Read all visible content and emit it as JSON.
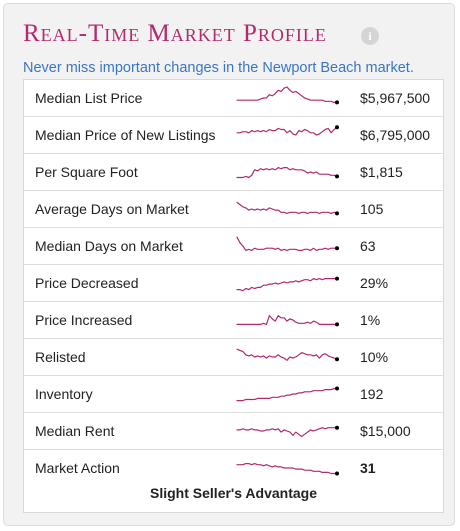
{
  "header": {
    "title": "Real-Time Market Profile",
    "info_icon": "info-icon",
    "subtitle": "Never miss important changes in the Newport Beach market."
  },
  "colors": {
    "accent": "#b22a6c",
    "link": "#3a76c4"
  },
  "rows": [
    {
      "label": "Median List Price",
      "value": "$5,967,500",
      "trend": [
        8,
        8,
        8,
        8,
        8,
        8,
        8,
        8,
        9,
        10,
        10,
        13,
        12,
        14,
        17,
        16,
        19,
        20,
        17,
        15,
        16,
        14,
        12,
        10,
        9,
        8,
        8,
        8,
        8,
        8,
        7,
        7,
        7,
        6,
        6
      ]
    },
    {
      "label": "Median Price of New Listings",
      "value": "$6,795,000",
      "trend": [
        12,
        12,
        13,
        13,
        12,
        14,
        13,
        14,
        13,
        14,
        13,
        15,
        14,
        14,
        16,
        15,
        15,
        12,
        14,
        11,
        10,
        14,
        13,
        15,
        14,
        12,
        12,
        10,
        11,
        13,
        15,
        16,
        12,
        15,
        17
      ]
    },
    {
      "label": "Per Square Foot",
      "value": "$1,815",
      "trend": [
        5,
        5,
        5,
        6,
        5,
        7,
        12,
        11,
        13,
        12,
        13,
        12,
        13,
        12,
        14,
        13,
        14,
        14,
        12,
        13,
        12,
        12,
        12,
        11,
        9,
        10,
        9,
        10,
        8,
        8,
        8,
        8,
        7,
        7,
        6
      ]
    },
    {
      "label": "Average Days on Market",
      "value": "105",
      "trend": [
        16,
        14,
        12,
        11,
        9,
        10,
        9,
        10,
        9,
        10,
        9,
        11,
        10,
        9,
        9,
        7,
        7,
        6,
        7,
        7,
        7,
        6,
        7,
        7,
        6,
        7,
        7,
        7,
        6,
        7,
        7,
        7,
        6,
        7,
        6
      ]
    },
    {
      "label": "Median Days on Market",
      "value": "63",
      "trend": [
        18,
        13,
        10,
        6,
        7,
        6,
        8,
        7,
        7,
        7,
        8,
        8,
        8,
        7,
        8,
        6,
        7,
        6,
        7,
        7,
        7,
        6,
        6,
        7,
        7,
        6,
        8,
        6,
        7,
        7,
        8,
        7,
        8,
        8,
        8
      ]
    },
    {
      "label": "Price Decreased",
      "value": "29%",
      "trend": [
        4,
        4,
        3,
        5,
        4,
        6,
        5,
        6,
        6,
        8,
        8,
        9,
        9,
        10,
        9,
        10,
        11,
        10,
        11,
        11,
        12,
        11,
        12,
        13,
        13,
        12,
        14,
        13,
        14,
        13,
        14,
        14,
        14,
        14,
        14
      ]
    },
    {
      "label": "Price Increased",
      "value": "1%",
      "trend": [
        6,
        6,
        6,
        6,
        6,
        6,
        6,
        6,
        6,
        7,
        6,
        14,
        11,
        9,
        14,
        12,
        12,
        9,
        11,
        10,
        8,
        7,
        7,
        7,
        8,
        7,
        9,
        8,
        6,
        6,
        6,
        6,
        6,
        6,
        6
      ]
    },
    {
      "label": "Relisted",
      "value": "10%",
      "trend": [
        17,
        16,
        15,
        12,
        11,
        12,
        10,
        11,
        10,
        11,
        9,
        11,
        10,
        10,
        12,
        10,
        9,
        7,
        10,
        9,
        10,
        12,
        14,
        13,
        12,
        12,
        11,
        12,
        9,
        12,
        13,
        11,
        10,
        9,
        8
      ]
    },
    {
      "label": "Inventory",
      "value": "192",
      "trend": [
        4,
        4,
        4,
        5,
        5,
        5,
        5,
        6,
        6,
        6,
        6,
        6,
        7,
        7,
        7,
        8,
        8,
        9,
        9,
        10,
        10,
        11,
        11,
        12,
        12,
        12,
        13,
        13,
        13,
        13,
        14,
        14,
        14,
        15,
        15
      ]
    },
    {
      "label": "Median Rent",
      "value": "$15,000",
      "trend": [
        11,
        11,
        12,
        11,
        11,
        12,
        11,
        11,
        10,
        10,
        11,
        11,
        12,
        11,
        12,
        9,
        11,
        10,
        9,
        6,
        9,
        7,
        5,
        7,
        9,
        11,
        10,
        11,
        12,
        13,
        12,
        13,
        13,
        13,
        13
      ]
    },
    {
      "label": "Market Action",
      "value": "31",
      "trend": [
        13,
        13,
        13,
        14,
        14,
        13,
        14,
        13,
        13,
        12,
        13,
        12,
        11,
        12,
        11,
        11,
        10,
        10,
        10,
        10,
        9,
        9,
        9,
        8,
        8,
        8,
        7,
        7,
        7,
        6,
        6,
        6,
        5,
        5,
        5
      ]
    }
  ],
  "market_action_text": "Slight Seller's Advantage"
}
